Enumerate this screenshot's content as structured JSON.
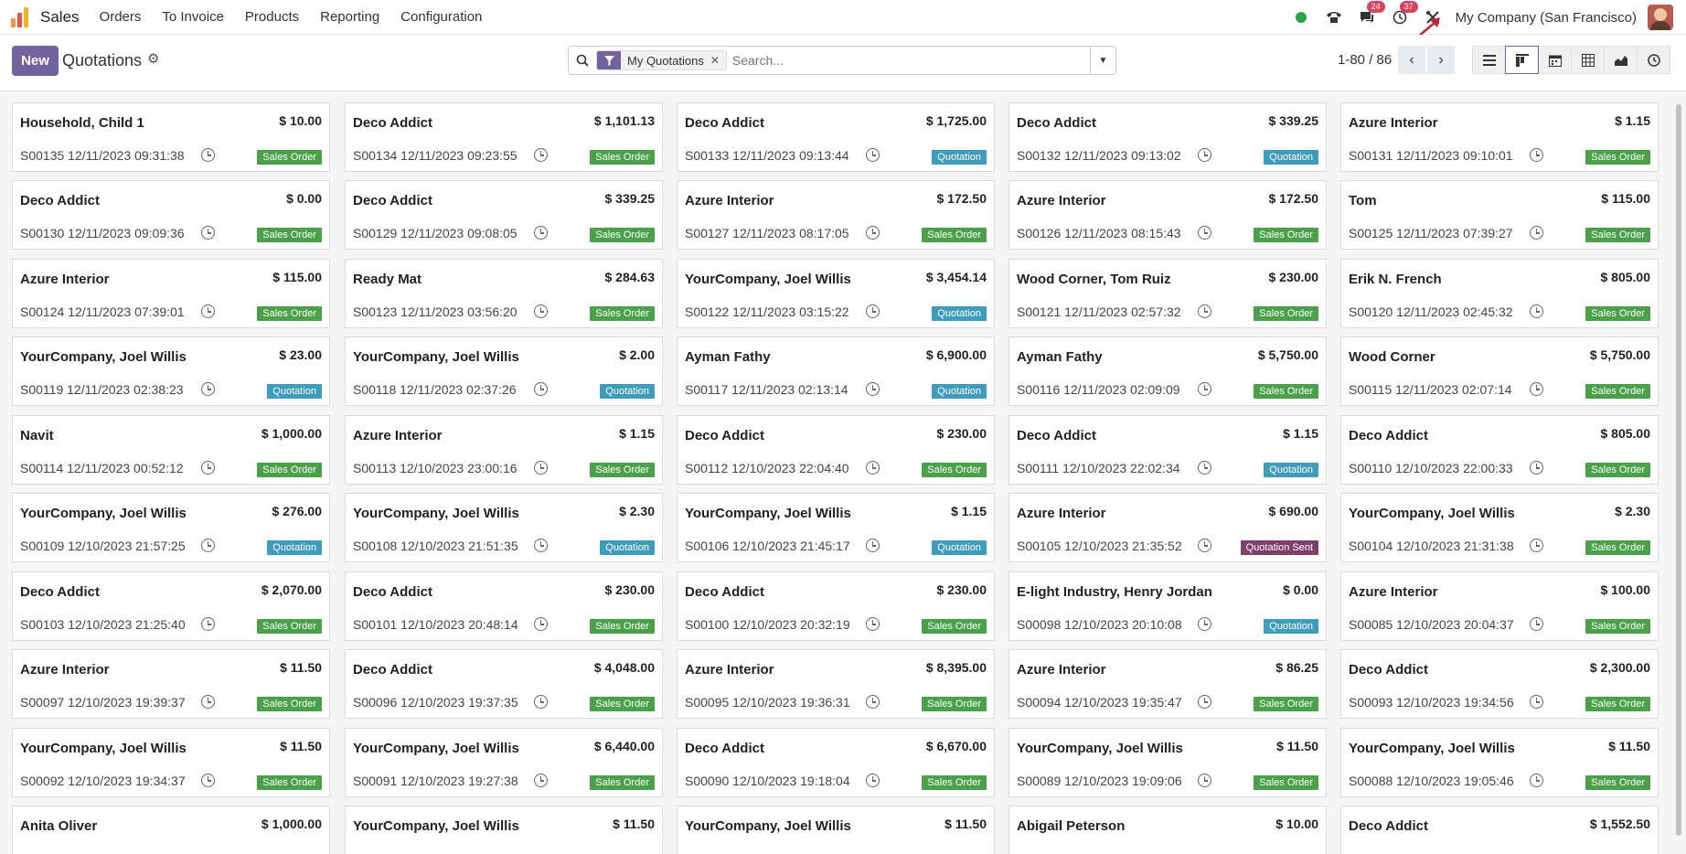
{
  "app": {
    "name": "Sales",
    "menu": [
      "Orders",
      "To Invoice",
      "Products",
      "Reporting",
      "Configuration"
    ],
    "messages_count": "24",
    "activities_count": "37",
    "company": "My Company (San Francisco)"
  },
  "control": {
    "new_label": "New",
    "title": "Quotations",
    "facet_label": "My Quotations",
    "search_placeholder": "Search...",
    "pager": "1-80 / 86"
  },
  "colors": {
    "brand": "#71639e",
    "sales_order": "#4aa14a",
    "quotation": "#3f9cba",
    "quotation_sent": "#7e3f6c"
  },
  "cards": [
    {
      "customer": "Household, Child 1",
      "amount": "$ 10.00",
      "ref": "S00135 12/11/2023 09:31:38",
      "status": "Sales Order"
    },
    {
      "customer": "Deco Addict",
      "amount": "$ 1,101.13",
      "ref": "S00134 12/11/2023 09:23:55",
      "status": "Sales Order"
    },
    {
      "customer": "Deco Addict",
      "amount": "$ 1,725.00",
      "ref": "S00133 12/11/2023 09:13:44",
      "status": "Quotation"
    },
    {
      "customer": "Deco Addict",
      "amount": "$ 339.25",
      "ref": "S00132 12/11/2023 09:13:02",
      "status": "Quotation"
    },
    {
      "customer": "Azure Interior",
      "amount": "$ 1.15",
      "ref": "S00131 12/11/2023 09:10:01",
      "status": "Sales Order"
    },
    {
      "customer": "Deco Addict",
      "amount": "$ 0.00",
      "ref": "S00130 12/11/2023 09:09:36",
      "status": "Sales Order"
    },
    {
      "customer": "Deco Addict",
      "amount": "$ 339.25",
      "ref": "S00129 12/11/2023 09:08:05",
      "status": "Sales Order"
    },
    {
      "customer": "Azure Interior",
      "amount": "$ 172.50",
      "ref": "S00127 12/11/2023 08:17:05",
      "status": "Sales Order"
    },
    {
      "customer": "Azure Interior",
      "amount": "$ 172.50",
      "ref": "S00126 12/11/2023 08:15:43",
      "status": "Sales Order"
    },
    {
      "customer": "Tom",
      "amount": "$ 115.00",
      "ref": "S00125 12/11/2023 07:39:27",
      "status": "Sales Order"
    },
    {
      "customer": "Azure Interior",
      "amount": "$ 115.00",
      "ref": "S00124 12/11/2023 07:39:01",
      "status": "Sales Order"
    },
    {
      "customer": "Ready Mat",
      "amount": "$ 284.63",
      "ref": "S00123 12/11/2023 03:56:20",
      "status": "Sales Order"
    },
    {
      "customer": "YourCompany, Joel Willis",
      "amount": "$ 3,454.14",
      "ref": "S00122 12/11/2023 03:15:22",
      "status": "Quotation"
    },
    {
      "customer": "Wood Corner, Tom Ruiz",
      "amount": "$ 230.00",
      "ref": "S00121 12/11/2023 02:57:32",
      "status": "Sales Order"
    },
    {
      "customer": "Erik N. French",
      "amount": "$ 805.00",
      "ref": "S00120 12/11/2023 02:45:32",
      "status": "Sales Order"
    },
    {
      "customer": "YourCompany, Joel Willis",
      "amount": "$ 23.00",
      "ref": "S00119 12/11/2023 02:38:23",
      "status": "Quotation"
    },
    {
      "customer": "YourCompany, Joel Willis",
      "amount": "$ 2.00",
      "ref": "S00118 12/11/2023 02:37:26",
      "status": "Quotation"
    },
    {
      "customer": "Ayman Fathy",
      "amount": "$ 6,900.00",
      "ref": "S00117 12/11/2023 02:13:14",
      "status": "Quotation"
    },
    {
      "customer": "Ayman Fathy",
      "amount": "$ 5,750.00",
      "ref": "S00116 12/11/2023 02:09:09",
      "status": "Sales Order"
    },
    {
      "customer": "Wood Corner",
      "amount": "$ 5,750.00",
      "ref": "S00115 12/11/2023 02:07:14",
      "status": "Sales Order"
    },
    {
      "customer": "Navit",
      "amount": "$ 1,000.00",
      "ref": "S00114 12/11/2023 00:52:12",
      "status": "Sales Order"
    },
    {
      "customer": "Azure Interior",
      "amount": "$ 1.15",
      "ref": "S00113 12/10/2023 23:00:16",
      "status": "Sales Order"
    },
    {
      "customer": "Deco Addict",
      "amount": "$ 230.00",
      "ref": "S00112 12/10/2023 22:04:40",
      "status": "Sales Order"
    },
    {
      "customer": "Deco Addict",
      "amount": "$ 1.15",
      "ref": "S00111 12/10/2023 22:02:34",
      "status": "Quotation"
    },
    {
      "customer": "Deco Addict",
      "amount": "$ 805.00",
      "ref": "S00110 12/10/2023 22:00:33",
      "status": "Sales Order"
    },
    {
      "customer": "YourCompany, Joel Willis",
      "amount": "$ 276.00",
      "ref": "S00109 12/10/2023 21:57:25",
      "status": "Quotation"
    },
    {
      "customer": "YourCompany, Joel Willis",
      "amount": "$ 2.30",
      "ref": "S00108 12/10/2023 21:51:35",
      "status": "Quotation"
    },
    {
      "customer": "YourCompany, Joel Willis",
      "amount": "$ 1.15",
      "ref": "S00106 12/10/2023 21:45:17",
      "status": "Quotation"
    },
    {
      "customer": "Azure Interior",
      "amount": "$ 690.00",
      "ref": "S00105 12/10/2023 21:35:52",
      "status": "Quotation Sent"
    },
    {
      "customer": "YourCompany, Joel Willis",
      "amount": "$ 2.30",
      "ref": "S00104 12/10/2023 21:31:38",
      "status": "Sales Order"
    },
    {
      "customer": "Deco Addict",
      "amount": "$ 2,070.00",
      "ref": "S00103 12/10/2023 21:25:40",
      "status": "Sales Order"
    },
    {
      "customer": "Deco Addict",
      "amount": "$ 230.00",
      "ref": "S00101 12/10/2023 20:48:14",
      "status": "Sales Order"
    },
    {
      "customer": "Deco Addict",
      "amount": "$ 230.00",
      "ref": "S00100 12/10/2023 20:32:19",
      "status": "Sales Order"
    },
    {
      "customer": "E-light Industry, Henry Jordan",
      "amount": "$ 0.00",
      "ref": "S00098 12/10/2023 20:10:08",
      "status": "Quotation"
    },
    {
      "customer": "Azure Interior",
      "amount": "$ 100.00",
      "ref": "S00085 12/10/2023 20:04:37",
      "status": "Sales Order"
    },
    {
      "customer": "Azure Interior",
      "amount": "$ 11.50",
      "ref": "S00097 12/10/2023 19:39:37",
      "status": "Sales Order"
    },
    {
      "customer": "Deco Addict",
      "amount": "$ 4,048.00",
      "ref": "S00096 12/10/2023 19:37:35",
      "status": "Sales Order"
    },
    {
      "customer": "Azure Interior",
      "amount": "$ 8,395.00",
      "ref": "S00095 12/10/2023 19:36:31",
      "status": "Sales Order"
    },
    {
      "customer": "Azure Interior",
      "amount": "$ 86.25",
      "ref": "S00094 12/10/2023 19:35:47",
      "status": "Sales Order"
    },
    {
      "customer": "Deco Addict",
      "amount": "$ 2,300.00",
      "ref": "S00093 12/10/2023 19:34:56",
      "status": "Sales Order"
    },
    {
      "customer": "YourCompany, Joel Willis",
      "amount": "$ 11.50",
      "ref": "S00092 12/10/2023 19:34:37",
      "status": "Sales Order"
    },
    {
      "customer": "YourCompany, Joel Willis",
      "amount": "$ 6,440.00",
      "ref": "S00091 12/10/2023 19:27:38",
      "status": "Sales Order"
    },
    {
      "customer": "Deco Addict",
      "amount": "$ 6,670.00",
      "ref": "S00090 12/10/2023 19:18:04",
      "status": "Sales Order"
    },
    {
      "customer": "YourCompany, Joel Willis",
      "amount": "$ 11.50",
      "ref": "S00089 12/10/2023 19:09:06",
      "status": "Sales Order"
    },
    {
      "customer": "YourCompany, Joel Willis",
      "amount": "$ 11.50",
      "ref": "S00088 12/10/2023 19:05:46",
      "status": "Sales Order"
    },
    {
      "customer": "Anita Oliver",
      "amount": "$ 1,000.00",
      "ref": "",
      "status": ""
    },
    {
      "customer": "YourCompany, Joel Willis",
      "amount": "$ 11.50",
      "ref": "",
      "status": ""
    },
    {
      "customer": "YourCompany, Joel Willis",
      "amount": "$ 11.50",
      "ref": "",
      "status": ""
    },
    {
      "customer": "Abigail Peterson",
      "amount": "$ 10.00",
      "ref": "",
      "status": ""
    },
    {
      "customer": "Deco Addict",
      "amount": "$ 1,552.50",
      "ref": "",
      "status": ""
    }
  ]
}
